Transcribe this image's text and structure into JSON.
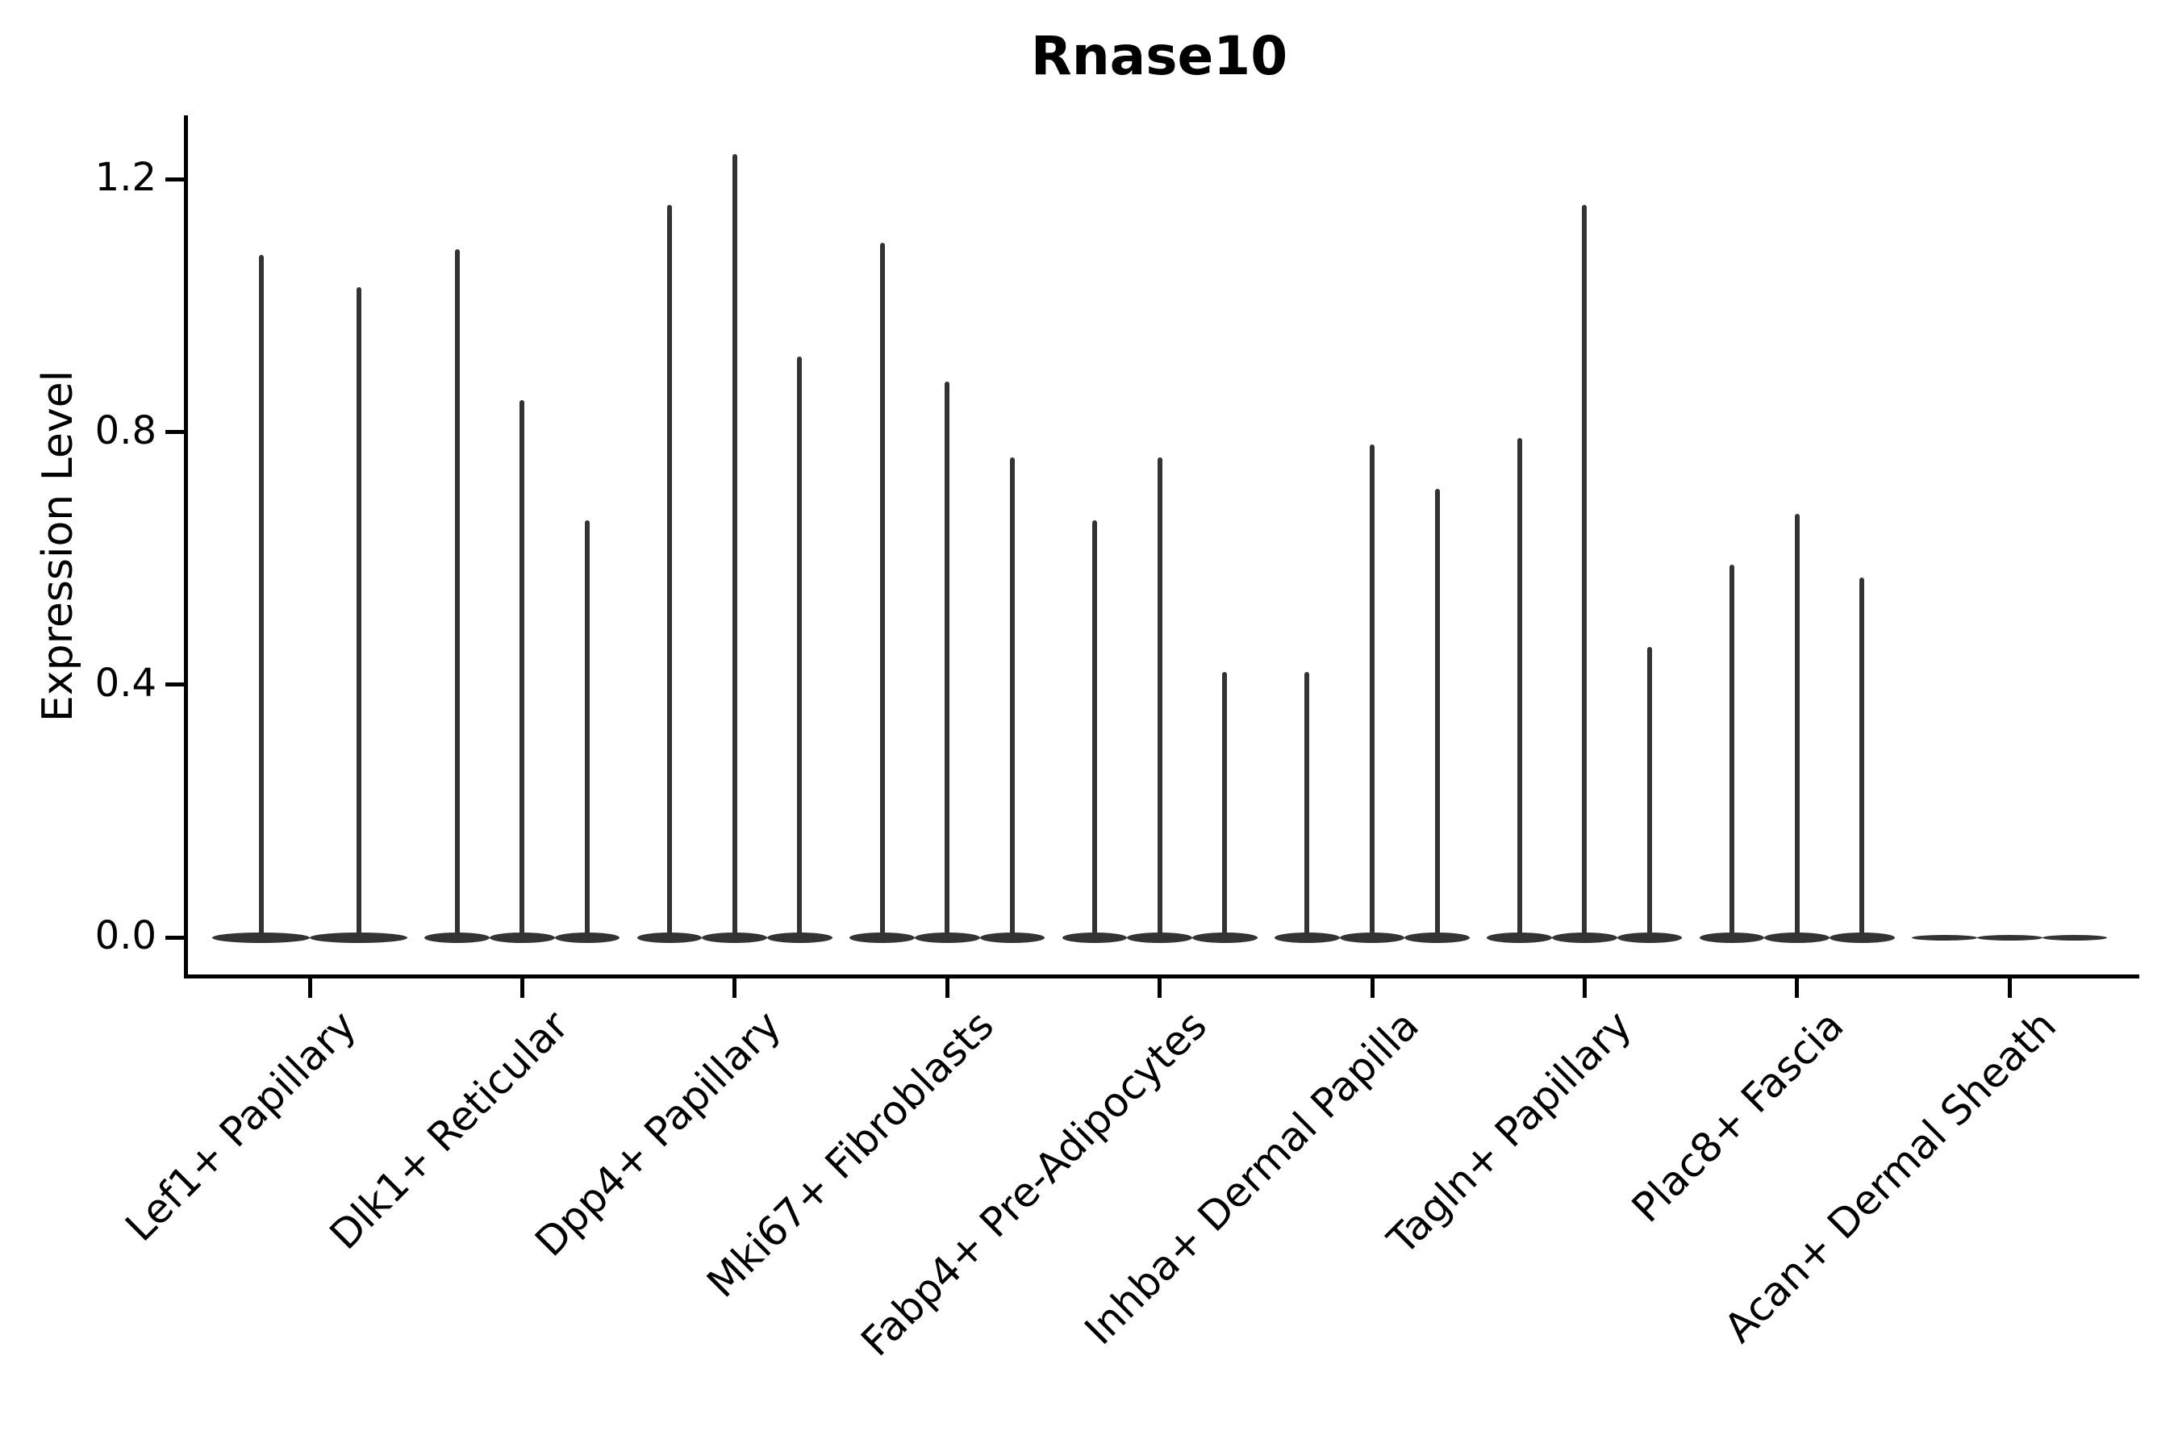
{
  "title": "Rnase10",
  "chart_data": {
    "type": "violin",
    "title": "Rnase10",
    "xlabel": "",
    "ylabel": "Expression Level",
    "yticks": [
      0.0,
      0.4,
      0.8,
      1.2
    ],
    "ytick_labels": [
      "0.0",
      "0.4",
      "0.8",
      "1.2"
    ],
    "ylim": [
      -0.06,
      1.3
    ],
    "grid": false,
    "legend": "none",
    "violin_color": "#333333",
    "axis_color": "#000000",
    "background_color": "#ffffff",
    "categories": [
      "Lef1+ Papillary",
      "Dlk1+ Reticular",
      "Dpp4+ Papillary",
      "Mki67+ Fibroblasts",
      "Fabp4+ Pre-Adipocytes",
      "Inhba+ Dermal Papilla",
      "Tagln+ Papillary",
      "Plac8+ Fascia",
      "Acan+ Dermal Sheath"
    ],
    "groups": [
      {
        "category": "Lef1+ Papillary",
        "violin_peak_values": [
          1.08,
          1.03
        ]
      },
      {
        "category": "Dlk1+ Reticular",
        "violin_peak_values": [
          1.09,
          0.85,
          0.66
        ]
      },
      {
        "category": "Dpp4+ Papillary",
        "violin_peak_values": [
          1.16,
          1.24,
          0.92
        ]
      },
      {
        "category": "Mki67+ Fibroblasts",
        "violin_peak_values": [
          1.1,
          0.88,
          0.76
        ]
      },
      {
        "category": "Fabp4+ Pre-Adipocytes",
        "violin_peak_values": [
          0.66,
          0.76,
          0.42
        ]
      },
      {
        "category": "Inhba+ Dermal Papilla",
        "violin_peak_values": [
          0.42,
          0.78,
          0.71
        ]
      },
      {
        "category": "Tagln+ Papillary",
        "violin_peak_values": [
          0.79,
          1.16,
          0.46
        ]
      },
      {
        "category": "Plac8+ Fascia",
        "violin_peak_values": [
          0.59,
          0.67,
          0.57
        ]
      },
      {
        "category": "Acan+ Dermal Sheath",
        "violin_peak_values": [
          0,
          0,
          0
        ]
      }
    ]
  }
}
